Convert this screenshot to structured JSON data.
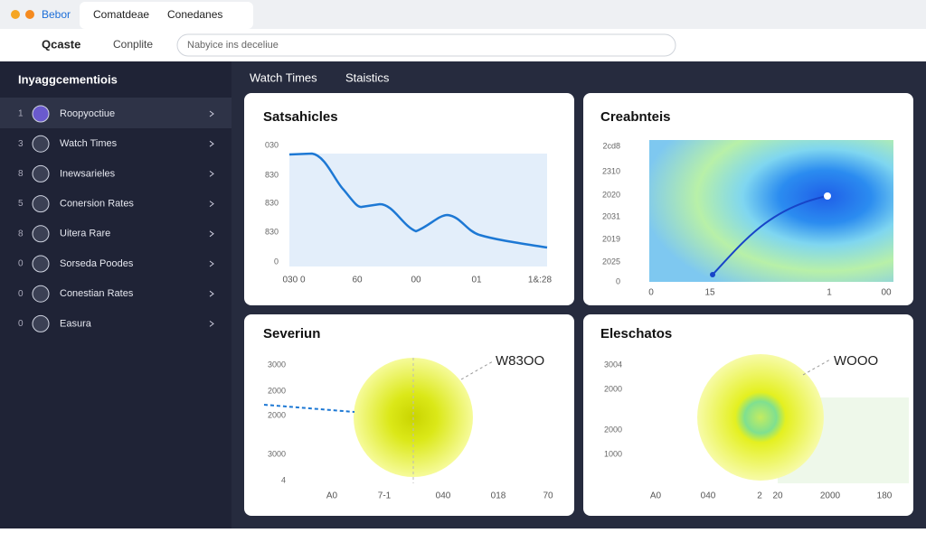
{
  "window": {
    "tabs": [
      "Bebor",
      "Comatdeae",
      "Conedanes"
    ]
  },
  "toolbar": {
    "brand": "Qcaste",
    "link": "Conplite",
    "search": "Nabyice ins deceliue"
  },
  "sidebar": {
    "title": "Inyaggcementiois",
    "items": [
      {
        "number": "1",
        "label": "Roopyoctiue"
      },
      {
        "number": "3",
        "label": "Watch Times"
      },
      {
        "number": "8",
        "label": "Inewsarieles"
      },
      {
        "number": "5",
        "label": "Conersion Rates"
      },
      {
        "number": "8",
        "label": "Uitera Rare"
      },
      {
        "number": "0",
        "label": "Sorseda Poodes"
      },
      {
        "number": "0",
        "label": "Conestian Rates"
      },
      {
        "number": "0",
        "label": "Easura"
      }
    ]
  },
  "main": {
    "tabs": [
      "Watch Times",
      "Staistics"
    ],
    "cards": [
      {
        "title": "Satsahicles",
        "y_labels": [
          "030",
          "830",
          "830",
          "830",
          "0"
        ],
        "x_labels": [
          "030 0",
          "60",
          "00",
          "01",
          "1&:28"
        ]
      },
      {
        "title": "Creabnteis",
        "y_labels": [
          "2cd8",
          "2310",
          "2020",
          "2031",
          "2019",
          "2025",
          "0"
        ],
        "x_labels": [
          "0",
          "15",
          "1",
          "00"
        ]
      },
      {
        "title": "Severiun",
        "annotation": "W83OO",
        "y_labels": [
          "3000",
          "2000",
          "2000",
          "3000",
          "4"
        ],
        "x_labels": [
          "A0",
          "7-1",
          "040",
          "018",
          "70"
        ]
      },
      {
        "title": "Eleschatos",
        "annotation": "WOOO",
        "y_labels": [
          "3004",
          "2000",
          "2000",
          "1000"
        ],
        "x_labels": [
          "A0",
          "040",
          "2",
          "20",
          "2000",
          "180"
        ]
      }
    ]
  }
}
